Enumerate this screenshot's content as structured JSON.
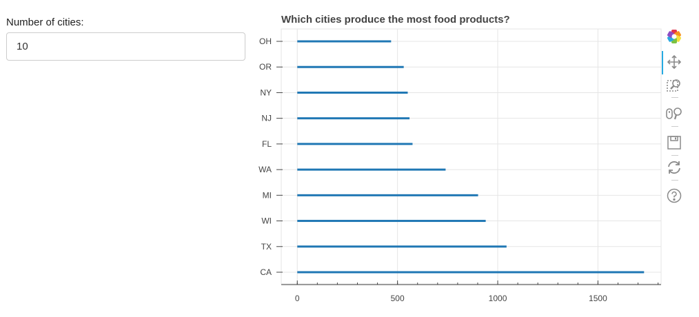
{
  "controls": {
    "label": "Number of cities:",
    "value": "10"
  },
  "chart_data": {
    "type": "bar",
    "orientation": "horizontal",
    "title": "Which cities produce the most food products?",
    "categories": [
      "OH",
      "OR",
      "NY",
      "NJ",
      "FL",
      "WA",
      "MI",
      "WI",
      "TX",
      "CA"
    ],
    "values": [
      468,
      531,
      551,
      560,
      575,
      740,
      902,
      940,
      1044,
      1730
    ],
    "xlim": [
      -80,
      1815
    ],
    "xticks": [
      0,
      500,
      1000,
      1500
    ],
    "xtick_labels": [
      "0",
      "500",
      "1000",
      "1500"
    ],
    "grid": true,
    "bar_color": "#1f77b4"
  },
  "toolbar": {
    "tools": [
      "bokeh-logo-icon",
      "pan-icon",
      "box-zoom-icon",
      "wheel-zoom-icon",
      "save-icon",
      "reset-icon",
      "help-icon"
    ]
  }
}
